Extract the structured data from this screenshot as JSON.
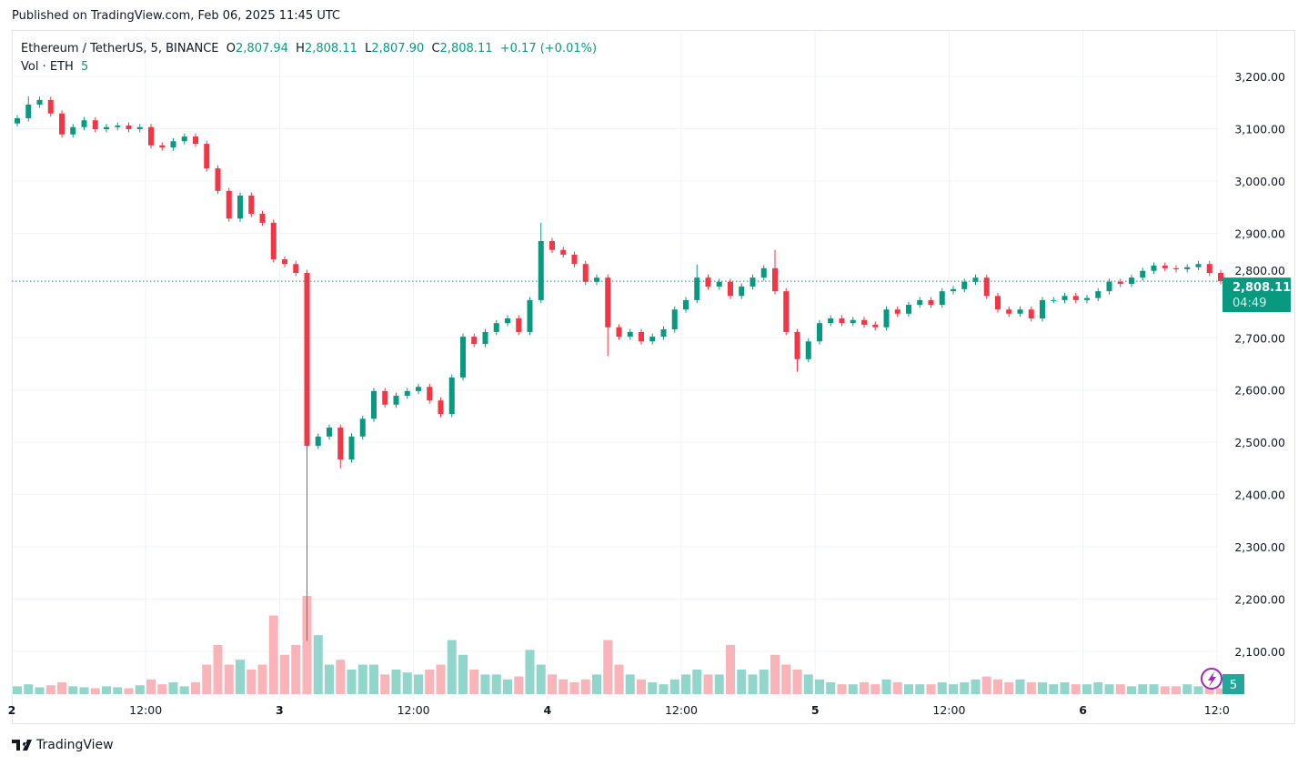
{
  "published": "Published on TradingView.com, Feb 06, 2025 11:45 UTC",
  "legend": {
    "symbol": "Ethereum / TetherUS, 5, BINANCE",
    "open_label": "O",
    "open": "2,807.94",
    "high_label": "H",
    "high": "2,808.11",
    "low_label": "L",
    "low": "2,807.90",
    "close_label": "C",
    "close": "2,808.11",
    "change": "+0.17 (+0.01%)",
    "volume_label": "Vol · ETH",
    "volume": "5"
  },
  "last_price": {
    "price": "2,808.11",
    "countdown": "04:49"
  },
  "volume_badge": "5",
  "logo_text": "TradingView",
  "colors": {
    "up": "#089981",
    "down": "#f23645",
    "up_volume": "#7fcfc2",
    "down_volume": "#f8a7ad",
    "grid": "#f0f3fa",
    "alert_icon": "#9c27b0"
  },
  "chart_data": {
    "type": "candlestick",
    "symbol": "ETHUSDT",
    "interval": "5",
    "ylim": [
      2000,
      3260
    ],
    "y_ticks": [
      "3,200.00",
      "3,100.00",
      "3,000.00",
      "2,900.00",
      "2,800.00",
      "2,700.00",
      "2,600.00",
      "2,500.00",
      "2,400.00",
      "2,300.00",
      "2,200.00",
      "2,100.00"
    ],
    "y_tick_values": [
      3200,
      3100,
      3000,
      2900,
      2800,
      2700,
      2600,
      2500,
      2400,
      2300,
      2200,
      2100
    ],
    "x_ticks": [
      "2",
      "12:00",
      "3",
      "12:00",
      "4",
      "12:00",
      "5",
      "12:00",
      "6",
      "12:0"
    ],
    "grid": true,
    "hourly_close": [
      3120,
      3146,
      3155,
      3129,
      3089,
      3103,
      3116,
      3099,
      3103,
      3106,
      3099,
      3103,
      3068,
      3064,
      3076,
      3085,
      3071,
      3024,
      2981,
      2928,
      2972,
      2937,
      2920,
      2850,
      2841,
      2824,
      2493,
      2511,
      2528,
      2467,
      2511,
      2545,
      2598,
      2572,
      2589,
      2598,
      2606,
      2580,
      2554,
      2624,
      2702,
      2688,
      2711,
      2728,
      2737,
      2711,
      2772,
      2885,
      2868,
      2859,
      2841,
      2807,
      2815,
      2720,
      2702,
      2711,
      2693,
      2702,
      2716,
      2754,
      2772,
      2815,
      2798,
      2807,
      2780,
      2798,
      2815,
      2833,
      2789,
      2711,
      2659,
      2693,
      2728,
      2737,
      2728,
      2734,
      2725,
      2720,
      2754,
      2746,
      2763,
      2772,
      2763,
      2789,
      2793,
      2807,
      2815,
      2780,
      2754,
      2746,
      2754,
      2737,
      2772,
      2772,
      2780,
      2772,
      2776,
      2789,
      2807,
      2803,
      2815,
      2828,
      2838,
      2833,
      2831,
      2835,
      2841,
      2824,
      2808.11
    ],
    "first_open": 3110,
    "notable_lows": {
      "26": 2120,
      "29": 2450,
      "70": 2635,
      "53": 2665
    },
    "notable_highs": {
      "1": 3162,
      "47": 2920,
      "68": 2868,
      "61": 2840
    },
    "relative_volume": [
      0.08,
      0.1,
      0.07,
      0.09,
      0.12,
      0.08,
      0.07,
      0.06,
      0.08,
      0.07,
      0.06,
      0.09,
      0.15,
      0.1,
      0.12,
      0.08,
      0.12,
      0.3,
      0.5,
      0.3,
      0.35,
      0.25,
      0.3,
      0.8,
      0.4,
      0.5,
      1.0,
      0.6,
      0.3,
      0.35,
      0.25,
      0.3,
      0.3,
      0.2,
      0.25,
      0.22,
      0.2,
      0.25,
      0.3,
      0.55,
      0.4,
      0.25,
      0.2,
      0.2,
      0.15,
      0.18,
      0.45,
      0.3,
      0.2,
      0.15,
      0.12,
      0.15,
      0.2,
      0.55,
      0.3,
      0.2,
      0.15,
      0.12,
      0.1,
      0.15,
      0.2,
      0.25,
      0.2,
      0.2,
      0.5,
      0.25,
      0.2,
      0.25,
      0.4,
      0.3,
      0.25,
      0.2,
      0.15,
      0.12,
      0.1,
      0.1,
      0.12,
      0.1,
      0.15,
      0.12,
      0.1,
      0.1,
      0.1,
      0.12,
      0.1,
      0.12,
      0.15,
      0.18,
      0.15,
      0.12,
      0.15,
      0.12,
      0.12,
      0.1,
      0.12,
      0.1,
      0.1,
      0.12,
      0.1,
      0.1,
      0.08,
      0.1,
      0.1,
      0.08,
      0.08,
      0.1,
      0.08,
      0.1,
      0.06
    ]
  }
}
